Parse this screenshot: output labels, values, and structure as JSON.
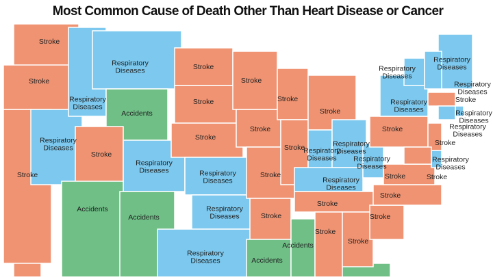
{
  "title": "Most Common Cause of Death Other Than Heart Disease or Cancer",
  "regions": [
    {
      "lines": [
        "Stroke"
      ],
      "color": "#ef9372"
    },
    {
      "lines": [
        "Stroke"
      ],
      "color": "#ef9372"
    },
    {
      "lines": [
        "Stroke"
      ],
      "color": "#ef9372"
    },
    {
      "lines": [
        "Respiratory",
        "Diseases"
      ],
      "color": "#7cc8ee"
    },
    {
      "lines": [
        "Respiratory",
        "Diseases"
      ],
      "color": "#7cc8ee"
    },
    {
      "lines": [
        "Respiratory",
        "Diseases"
      ],
      "color": "#7cc8ee"
    },
    {
      "lines": [
        "Accidents"
      ],
      "color": "#6fbf86"
    },
    {
      "lines": [
        "Stroke"
      ],
      "color": "#ef9372"
    },
    {
      "lines": [
        "Respiratory",
        "Diseases"
      ],
      "color": "#7cc8ee"
    },
    {
      "lines": [
        "Accidents"
      ],
      "color": "#6fbf86"
    },
    {
      "lines": [
        "Accidents"
      ],
      "color": "#6fbf86"
    },
    {
      "lines": [
        "Stroke"
      ],
      "color": "#ef9372"
    },
    {
      "lines": [
        "Stroke"
      ],
      "color": "#ef9372"
    },
    {
      "lines": [
        "Stroke"
      ],
      "color": "#ef9372"
    },
    {
      "lines": [
        "Respiratory",
        "Diseases"
      ],
      "color": "#7cc8ee"
    },
    {
      "lines": [
        "Respiratory",
        "Diseases"
      ],
      "color": "#7cc8ee"
    },
    {
      "lines": [
        "Respiratory",
        "Diseases"
      ],
      "color": "#7cc8ee"
    },
    {
      "lines": [
        "Stroke"
      ],
      "color": "#ef9372"
    },
    {
      "lines": [
        "Stroke"
      ],
      "color": "#ef9372"
    },
    {
      "lines": [
        "Stroke"
      ],
      "color": "#ef9372"
    },
    {
      "lines": [
        "Stroke"
      ],
      "color": "#ef9372"
    },
    {
      "lines": [
        "Accidents"
      ],
      "color": "#6fbf86"
    },
    {
      "lines": [
        "Accidents"
      ],
      "color": "#6fbf86"
    },
    {
      "lines": [
        "Stroke"
      ],
      "color": "#ef9372"
    },
    {
      "lines": [
        "Stroke"
      ],
      "color": "#ef9372"
    },
    {
      "lines": [
        "Stroke"
      ],
      "color": "#ef9372"
    },
    {
      "lines": [
        "Respiratory",
        "Diseases"
      ],
      "color": "#7cc8ee"
    },
    {
      "lines": [
        "Respiratory",
        "Diseases"
      ],
      "color": "#7cc8ee"
    },
    {
      "lines": [
        "Respiratory",
        "Diseases"
      ],
      "color": "#7cc8ee"
    },
    {
      "lines": [
        "Respiratory",
        "Diseases"
      ],
      "color": "#7cc8ee"
    },
    {
      "lines": [
        "Stroke"
      ],
      "color": "#ef9372"
    },
    {
      "lines": [
        "Stroke"
      ],
      "color": "#ef9372"
    },
    {
      "lines": [
        "Stroke"
      ],
      "color": "#ef9372"
    },
    {
      "lines": [
        "Stroke"
      ],
      "color": "#ef9372"
    },
    {
      "lines": [
        "Stroke"
      ],
      "color": "#ef9372"
    },
    {
      "lines": [
        "Stroke"
      ],
      "color": "#ef9372"
    },
    {
      "lines": [
        "Stroke"
      ],
      "color": "#ef9372"
    },
    {
      "lines": [
        "Respiratory",
        "Diseases"
      ],
      "color": "#7cc8ee"
    },
    {
      "lines": [
        "Respiratory",
        "Diseases"
      ],
      "color": "#7cc8ee"
    },
    {
      "lines": [
        "Respiratory",
        "Diseases"
      ],
      "color": "#7cc8ee"
    },
    {
      "lines": [
        "Respiratory",
        "Diseases"
      ],
      "color": "#7cc8ee"
    },
    {
      "lines": [
        "Stroke"
      ],
      "color": "#ef9372"
    },
    {
      "lines": [
        "Respiratory",
        "Diseases"
      ],
      "color": "#7cc8ee"
    },
    {
      "lines": [
        "Respiratory",
        "Diseases"
      ],
      "color": "#7cc8ee"
    },
    {
      "lines": [
        "Stroke"
      ],
      "color": "#ef9372"
    },
    {
      "lines": [
        "Respiratory",
        "Diseases"
      ],
      "color": "#7cc8ee"
    },
    {
      "lines": [
        "Stroke"
      ],
      "color": "#ef9372"
    }
  ]
}
